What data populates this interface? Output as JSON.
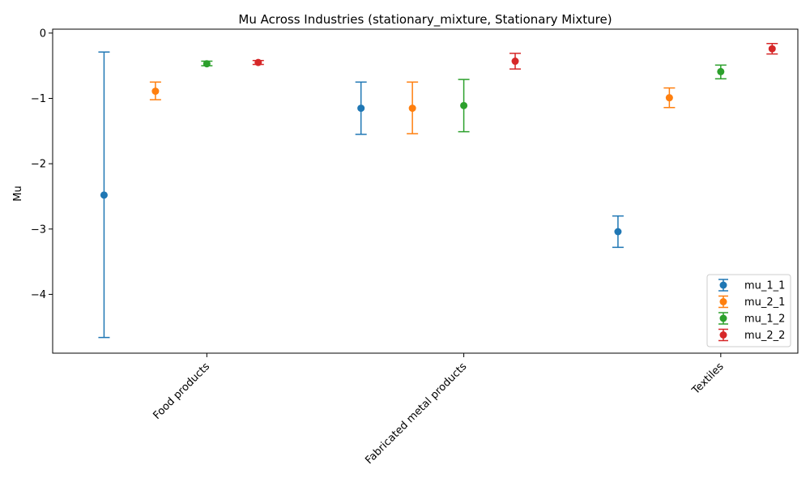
{
  "chart_data": {
    "type": "scatter",
    "title": "Mu Across Industries (stationary_mixture, Stationary Mixture)",
    "xlabel": "",
    "ylabel": "Mu",
    "categories": [
      "Food products",
      "Fabricated metal products",
      "Textiles"
    ],
    "ylim": [
      -4.9,
      0.06
    ],
    "yticks": [
      0,
      -1,
      -2,
      -3,
      -4
    ],
    "ytick_labels": [
      "0",
      "−1",
      "−2",
      "−3",
      "−4"
    ],
    "legend_position": "lower-right",
    "grid": false,
    "series": [
      {
        "name": "mu_1_1",
        "color": "#1f77b4",
        "offset": -0.4,
        "values": [
          -2.48,
          -1.15,
          -3.04
        ],
        "lower": [
          -4.66,
          -1.55,
          -3.28
        ],
        "upper": [
          -0.29,
          -0.75,
          -2.8
        ]
      },
      {
        "name": "mu_2_1",
        "color": "#ff7f0e",
        "offset": -0.2,
        "values": [
          -0.89,
          -1.15,
          -0.99
        ],
        "lower": [
          -1.02,
          -1.54,
          -1.14
        ],
        "upper": [
          -0.75,
          -0.75,
          -0.84
        ]
      },
      {
        "name": "mu_1_2",
        "color": "#2ca02c",
        "offset": 0.0,
        "values": [
          -0.47,
          -1.11,
          -0.59
        ],
        "lower": [
          -0.5,
          -1.51,
          -0.7
        ],
        "upper": [
          -0.43,
          -0.71,
          -0.49
        ]
      },
      {
        "name": "mu_2_2",
        "color": "#d62728",
        "offset": 0.2,
        "values": [
          -0.45,
          -0.43,
          -0.24
        ],
        "lower": [
          -0.48,
          -0.55,
          -0.32
        ],
        "upper": [
          -0.42,
          -0.31,
          -0.16
        ]
      }
    ]
  }
}
